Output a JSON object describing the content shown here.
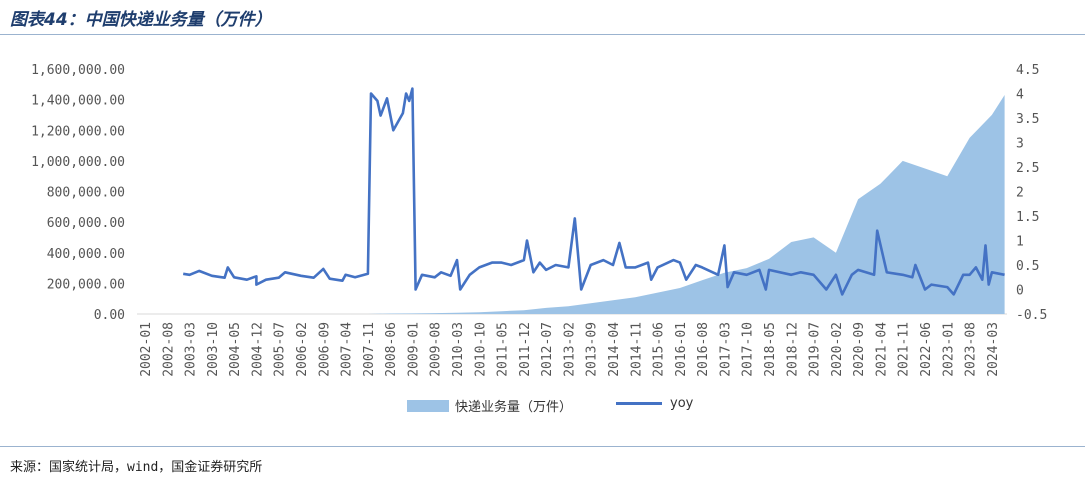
{
  "title": "图表44：中国快递业务量（万件）",
  "source": "来源：国家统计局，wind，国金证券研究所",
  "legend": {
    "area_label": "快递业务量（万件）",
    "line_label": "yoy"
  },
  "colors": {
    "area": "#9dc3e6",
    "line": "#4472c4",
    "header_rule": "#9bb3cf"
  },
  "chart_data": {
    "type": "area+line",
    "x_tick_labels": [
      "2002-01",
      "2002-08",
      "2003-03",
      "2003-10",
      "2004-05",
      "2004-12",
      "2005-07",
      "2006-02",
      "2006-09",
      "2007-04",
      "2007-11",
      "2008-06",
      "2009-01",
      "2009-08",
      "2010-03",
      "2010-10",
      "2011-05",
      "2011-12",
      "2012-07",
      "2013-02",
      "2013-09",
      "2014-04",
      "2014-11",
      "2015-06",
      "2016-01",
      "2016-08",
      "2017-03",
      "2017-10",
      "2018-05",
      "2018-12",
      "2019-07",
      "2020-02",
      "2020-09",
      "2021-04",
      "2021-11",
      "2022-06",
      "2023-01",
      "2023-08",
      "2024-03"
    ],
    "y_left": {
      "min": 0,
      "max": 1600000,
      "ticks": [
        "0.00",
        "200,000.00",
        "400,000.00",
        "600,000.00",
        "800,000.00",
        "1,000,000.00",
        "1,200,000.00",
        "1,400,000.00",
        "1,600,000.00"
      ]
    },
    "y_right": {
      "min": -0.5,
      "max": 4.5,
      "ticks": [
        "-0.5",
        "0",
        "0.5",
        "1",
        "1.5",
        "2",
        "2.5",
        "3",
        "3.5",
        "4",
        "4.5"
      ]
    },
    "series": [
      {
        "name": "快递业务量（万件）",
        "axis": "left",
        "kind": "area",
        "points": [
          [
            "2007-11",
            0
          ],
          [
            "2008-06",
            3000
          ],
          [
            "2009-01",
            4000
          ],
          [
            "2009-08",
            6000
          ],
          [
            "2010-03",
            8000
          ],
          [
            "2010-10",
            12000
          ],
          [
            "2011-05",
            18000
          ],
          [
            "2011-12",
            25000
          ],
          [
            "2012-07",
            40000
          ],
          [
            "2013-02",
            50000
          ],
          [
            "2013-09",
            70000
          ],
          [
            "2014-04",
            90000
          ],
          [
            "2014-11",
            110000
          ],
          [
            "2015-06",
            140000
          ],
          [
            "2016-01",
            170000
          ],
          [
            "2016-08",
            220000
          ],
          [
            "2017-03",
            270000
          ],
          [
            "2017-10",
            300000
          ],
          [
            "2018-05",
            360000
          ],
          [
            "2018-12",
            470000
          ],
          [
            "2019-07",
            500000
          ],
          [
            "2020-02",
            400000
          ],
          [
            "2020-09",
            750000
          ],
          [
            "2021-04",
            850000
          ],
          [
            "2021-11",
            1000000
          ],
          [
            "2022-06",
            950000
          ],
          [
            "2023-01",
            900000
          ],
          [
            "2023-08",
            1150000
          ],
          [
            "2024-03",
            1300000
          ],
          [
            "2024-07",
            1430000
          ]
        ]
      },
      {
        "name": "yoy",
        "axis": "right",
        "kind": "line",
        "points": [
          [
            "2003-01",
            0.32
          ],
          [
            "2003-03",
            0.3
          ],
          [
            "2003-06",
            0.38
          ],
          [
            "2003-10",
            0.28
          ],
          [
            "2004-02",
            0.24
          ],
          [
            "2004-03",
            0.45
          ],
          [
            "2004-05",
            0.25
          ],
          [
            "2004-09",
            0.2
          ],
          [
            "2004-12",
            0.27
          ],
          [
            "2004-12",
            0.1
          ],
          [
            "2005-03",
            0.2
          ],
          [
            "2005-07",
            0.24
          ],
          [
            "2005-09",
            0.35
          ],
          [
            "2006-02",
            0.28
          ],
          [
            "2006-06",
            0.24
          ],
          [
            "2006-09",
            0.42
          ],
          [
            "2006-11",
            0.22
          ],
          [
            "2007-03",
            0.18
          ],
          [
            "2007-04",
            0.3
          ],
          [
            "2007-07",
            0.25
          ],
          [
            "2007-11",
            0.32
          ],
          [
            "2007-12",
            4.0
          ],
          [
            "2008-02",
            3.85
          ],
          [
            "2008-03",
            3.55
          ],
          [
            "2008-05",
            3.9
          ],
          [
            "2008-07",
            3.25
          ],
          [
            "2008-10",
            3.6
          ],
          [
            "2008-11",
            4.0
          ],
          [
            "2008-12",
            3.85
          ],
          [
            "2009-01",
            4.1
          ],
          [
            "2009-02",
            0.0
          ],
          [
            "2009-04",
            0.3
          ],
          [
            "2009-08",
            0.25
          ],
          [
            "2009-10",
            0.35
          ],
          [
            "2010-01",
            0.28
          ],
          [
            "2010-03",
            0.6
          ],
          [
            "2010-04",
            0.0
          ],
          [
            "2010-07",
            0.3
          ],
          [
            "2010-10",
            0.45
          ],
          [
            "2011-02",
            0.55
          ],
          [
            "2011-05",
            0.55
          ],
          [
            "2011-08",
            0.5
          ],
          [
            "2011-12",
            0.6
          ],
          [
            "2012-01",
            1.0
          ],
          [
            "2012-03",
            0.35
          ],
          [
            "2012-05",
            0.55
          ],
          [
            "2012-07",
            0.4
          ],
          [
            "2012-10",
            0.5
          ],
          [
            "2013-02",
            0.45
          ],
          [
            "2013-04",
            1.45
          ],
          [
            "2013-06",
            0.0
          ],
          [
            "2013-09",
            0.5
          ],
          [
            "2014-01",
            0.6
          ],
          [
            "2014-04",
            0.5
          ],
          [
            "2014-06",
            0.95
          ],
          [
            "2014-08",
            0.45
          ],
          [
            "2014-11",
            0.45
          ],
          [
            "2015-03",
            0.55
          ],
          [
            "2015-04",
            0.2
          ],
          [
            "2015-06",
            0.45
          ],
          [
            "2015-11",
            0.6
          ],
          [
            "2016-01",
            0.55
          ],
          [
            "2016-03",
            0.2
          ],
          [
            "2016-06",
            0.5
          ],
          [
            "2016-08",
            0.45
          ],
          [
            "2017-01",
            0.3
          ],
          [
            "2017-03",
            0.9
          ],
          [
            "2017-04",
            0.05
          ],
          [
            "2017-06",
            0.35
          ],
          [
            "2017-10",
            0.3
          ],
          [
            "2018-02",
            0.4
          ],
          [
            "2018-04",
            0.0
          ],
          [
            "2018-05",
            0.4
          ],
          [
            "2018-12",
            0.3
          ],
          [
            "2019-03",
            0.35
          ],
          [
            "2019-07",
            0.3
          ],
          [
            "2019-11",
            0.0
          ],
          [
            "2020-02",
            0.3
          ],
          [
            "2020-04",
            -0.1
          ],
          [
            "2020-07",
            0.3
          ],
          [
            "2020-09",
            0.4
          ],
          [
            "2021-02",
            0.3
          ],
          [
            "2021-03",
            1.2
          ],
          [
            "2021-06",
            0.35
          ],
          [
            "2021-11",
            0.3
          ],
          [
            "2022-02",
            0.25
          ],
          [
            "2022-03",
            0.5
          ],
          [
            "2022-06",
            0.0
          ],
          [
            "2022-08",
            0.1
          ],
          [
            "2023-01",
            0.05
          ],
          [
            "2023-03",
            -0.1
          ],
          [
            "2023-06",
            0.3
          ],
          [
            "2023-08",
            0.3
          ],
          [
            "2023-10",
            0.45
          ],
          [
            "2023-12",
            0.2
          ],
          [
            "2024-01",
            0.9
          ],
          [
            "2024-02",
            0.1
          ],
          [
            "2024-03",
            0.35
          ],
          [
            "2024-07",
            0.3
          ]
        ]
      }
    ]
  }
}
